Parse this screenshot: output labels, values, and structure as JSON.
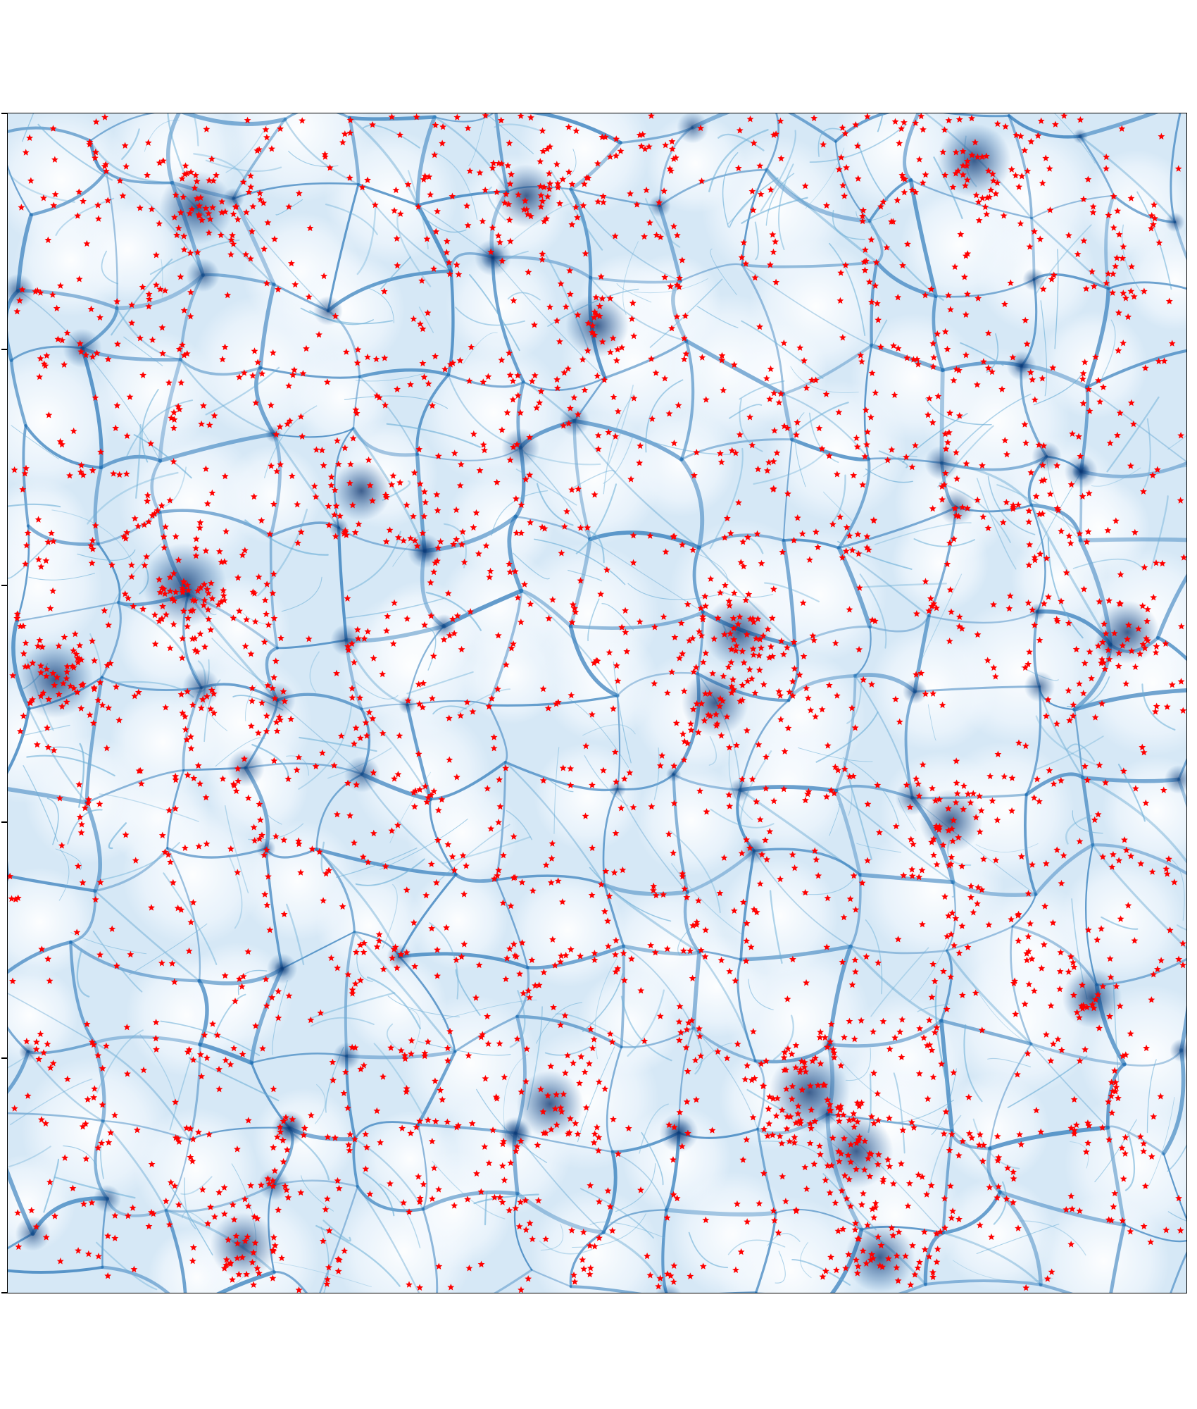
{
  "chart_data": {
    "type": "scatter",
    "description": "",
    "title": "",
    "xlabel": "",
    "ylabel": "",
    "xlim": [
      0,
      1
    ],
    "ylim": [
      0,
      1
    ],
    "grid": false,
    "legend": "none",
    "yticks_count": 6,
    "background": {
      "kind": "density-map",
      "colormap": "Blues",
      "low_color": "#f4f9fe",
      "high_color": "#08306b"
    },
    "series": [
      {
        "marker": "star",
        "color": "#ff0000",
        "approx_count": 3000,
        "clusters": [
          {
            "x": 0.15,
            "y": 0.6,
            "weight": 60
          },
          {
            "x": 0.04,
            "y": 0.52,
            "weight": 50
          },
          {
            "x": 0.16,
            "y": 0.92,
            "weight": 45
          },
          {
            "x": 0.62,
            "y": 0.56,
            "weight": 40
          },
          {
            "x": 0.6,
            "y": 0.5,
            "weight": 35
          },
          {
            "x": 0.68,
            "y": 0.17,
            "weight": 55
          },
          {
            "x": 0.72,
            "y": 0.12,
            "weight": 45
          },
          {
            "x": 0.46,
            "y": 0.16,
            "weight": 35
          },
          {
            "x": 0.74,
            "y": 0.03,
            "weight": 40
          },
          {
            "x": 0.82,
            "y": 0.96,
            "weight": 45
          },
          {
            "x": 0.95,
            "y": 0.56,
            "weight": 30
          },
          {
            "x": 0.8,
            "y": 0.4,
            "weight": 30
          },
          {
            "x": 0.2,
            "y": 0.04,
            "weight": 35
          },
          {
            "x": 0.44,
            "y": 0.93,
            "weight": 30
          },
          {
            "x": 0.5,
            "y": 0.82,
            "weight": 30
          },
          {
            "x": 0.92,
            "y": 0.25,
            "weight": 25
          },
          {
            "x": 0.3,
            "y": 0.68,
            "weight": 25
          }
        ]
      }
    ]
  }
}
